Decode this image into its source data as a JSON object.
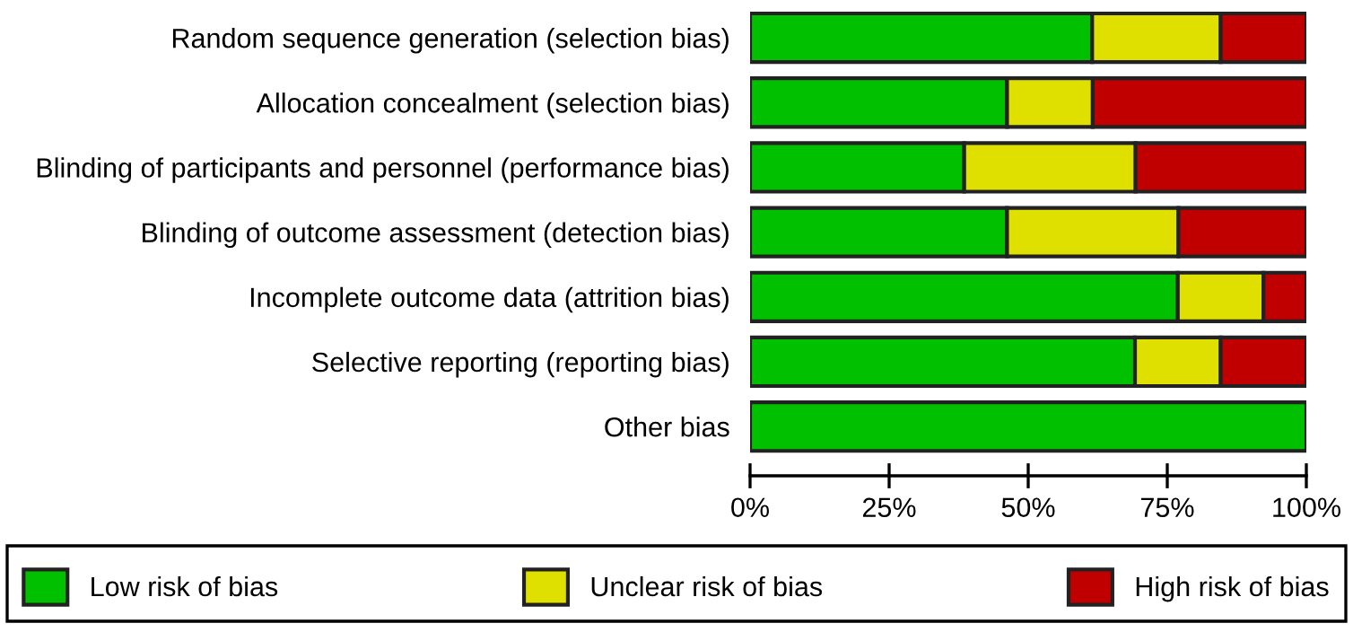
{
  "chart_data": {
    "type": "bar",
    "orientation": "horizontal",
    "stacked": true,
    "categories": [
      "Random sequence generation (selection bias)",
      "Allocation concealment (selection bias)",
      "Blinding of participants and personnel (performance bias)",
      "Blinding of outcome assessment (detection bias)",
      "Incomplete outcome data (attrition bias)",
      "Selective reporting (reporting bias)",
      "Other bias"
    ],
    "series": [
      {
        "name": "Low risk of bias",
        "color": "#00c000",
        "values": [
          61.5,
          46.2,
          38.5,
          46.2,
          76.9,
          69.2,
          100
        ]
      },
      {
        "name": "Unclear risk of bias",
        "color": "#e0e000",
        "values": [
          23.1,
          15.4,
          30.8,
          30.8,
          15.4,
          15.4,
          0
        ]
      },
      {
        "name": "High risk of bias",
        "color": "#c00000",
        "values": [
          15.4,
          38.4,
          30.7,
          23.0,
          7.7,
          15.4,
          0
        ]
      }
    ],
    "xlim": [
      0,
      100
    ],
    "xticks": [
      {
        "value": 0,
        "label": "0%"
      },
      {
        "value": 25,
        "label": "25%"
      },
      {
        "value": 50,
        "label": "50%"
      },
      {
        "value": 75,
        "label": "75%"
      },
      {
        "value": 100,
        "label": "100%"
      }
    ],
    "grid": false,
    "legend": "bottom"
  }
}
